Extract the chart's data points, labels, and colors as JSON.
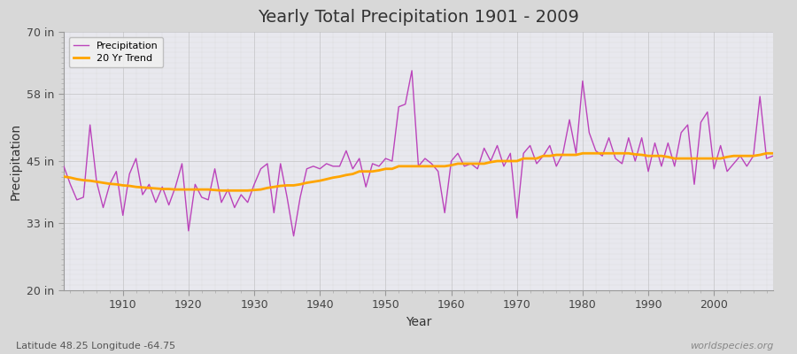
{
  "title": "Yearly Total Precipitation 1901 - 2009",
  "xlabel": "Year",
  "ylabel": "Precipitation",
  "subtitle": "Latitude 48.25 Longitude -64.75",
  "watermark": "worldspecies.org",
  "ylim": [
    20,
    70
  ],
  "yticks": [
    20,
    33,
    45,
    58,
    70
  ],
  "ytick_labels": [
    "20 in",
    "33 in",
    "45 in",
    "58 in",
    "70 in"
  ],
  "xlim": [
    1901,
    2009
  ],
  "xticks": [
    1910,
    1920,
    1930,
    1940,
    1950,
    1960,
    1970,
    1980,
    1990,
    2000
  ],
  "precip_color": "#BB44BB",
  "trend_color": "#FFA500",
  "fig_bg_color": "#D8D8D8",
  "plot_bg_color": "#E8E8EE",
  "years": [
    1901,
    1902,
    1903,
    1904,
    1905,
    1906,
    1907,
    1908,
    1909,
    1910,
    1911,
    1912,
    1913,
    1914,
    1915,
    1916,
    1917,
    1918,
    1919,
    1920,
    1921,
    1922,
    1923,
    1924,
    1925,
    1926,
    1927,
    1928,
    1929,
    1930,
    1931,
    1932,
    1933,
    1934,
    1935,
    1936,
    1937,
    1938,
    1939,
    1940,
    1941,
    1942,
    1943,
    1944,
    1945,
    1946,
    1947,
    1948,
    1949,
    1950,
    1951,
    1952,
    1953,
    1954,
    1955,
    1956,
    1957,
    1958,
    1959,
    1960,
    1961,
    1962,
    1963,
    1964,
    1965,
    1966,
    1967,
    1968,
    1969,
    1970,
    1971,
    1972,
    1973,
    1974,
    1975,
    1976,
    1977,
    1978,
    1979,
    1980,
    1981,
    1982,
    1983,
    1984,
    1985,
    1986,
    1987,
    1988,
    1989,
    1990,
    1991,
    1992,
    1993,
    1994,
    1995,
    1996,
    1997,
    1998,
    1999,
    2000,
    2001,
    2002,
    2003,
    2004,
    2005,
    2006,
    2007,
    2008,
    2009
  ],
  "precip": [
    44.0,
    40.5,
    37.5,
    38.0,
    52.0,
    41.0,
    36.0,
    40.5,
    43.0,
    34.5,
    42.5,
    45.5,
    38.5,
    40.5,
    37.0,
    40.0,
    36.5,
    40.0,
    44.5,
    31.5,
    40.5,
    38.0,
    37.5,
    43.5,
    37.0,
    39.5,
    36.0,
    38.5,
    37.0,
    40.5,
    43.5,
    44.5,
    35.0,
    44.5,
    38.0,
    30.5,
    38.0,
    43.5,
    44.0,
    43.5,
    44.5,
    44.0,
    44.0,
    47.0,
    43.5,
    45.5,
    40.0,
    44.5,
    44.0,
    45.5,
    45.0,
    55.5,
    56.0,
    62.5,
    44.0,
    45.5,
    44.5,
    43.0,
    35.0,
    45.0,
    46.5,
    44.0,
    44.5,
    43.5,
    47.5,
    45.0,
    48.0,
    44.0,
    46.5,
    34.0,
    46.5,
    48.0,
    44.5,
    46.0,
    48.0,
    44.0,
    46.5,
    53.0,
    46.5,
    60.5,
    50.5,
    47.0,
    46.0,
    49.5,
    45.5,
    44.5,
    49.5,
    45.0,
    49.5,
    43.0,
    48.5,
    44.0,
    48.5,
    44.0,
    50.5,
    52.0,
    40.5,
    52.5,
    54.5,
    43.5,
    48.0,
    43.0,
    44.5,
    46.0,
    44.0,
    46.0,
    57.5,
    45.5,
    46.0
  ],
  "trend": [
    42.0,
    41.8,
    41.5,
    41.3,
    41.2,
    41.0,
    40.8,
    40.6,
    40.5,
    40.3,
    40.2,
    40.0,
    39.9,
    39.8,
    39.7,
    39.6,
    39.6,
    39.5,
    39.5,
    39.5,
    39.5,
    39.5,
    39.5,
    39.4,
    39.3,
    39.3,
    39.3,
    39.3,
    39.3,
    39.4,
    39.5,
    39.8,
    40.0,
    40.2,
    40.3,
    40.3,
    40.5,
    40.8,
    41.0,
    41.2,
    41.5,
    41.8,
    42.0,
    42.3,
    42.5,
    43.0,
    43.0,
    43.0,
    43.2,
    43.5,
    43.5,
    44.0,
    44.0,
    44.0,
    44.0,
    44.0,
    44.0,
    44.0,
    44.0,
    44.2,
    44.5,
    44.5,
    44.5,
    44.5,
    44.5,
    44.8,
    45.0,
    45.0,
    45.0,
    45.0,
    45.5,
    45.5,
    45.5,
    46.0,
    46.0,
    46.2,
    46.2,
    46.2,
    46.2,
    46.5,
    46.5,
    46.5,
    46.5,
    46.5,
    46.5,
    46.5,
    46.5,
    46.3,
    46.2,
    46.0,
    46.0,
    46.0,
    45.8,
    45.5,
    45.5,
    45.5,
    45.5,
    45.5,
    45.5,
    45.5,
    45.5,
    45.8,
    46.0,
    46.0,
    46.0,
    46.0,
    46.2,
    46.5,
    46.5
  ]
}
